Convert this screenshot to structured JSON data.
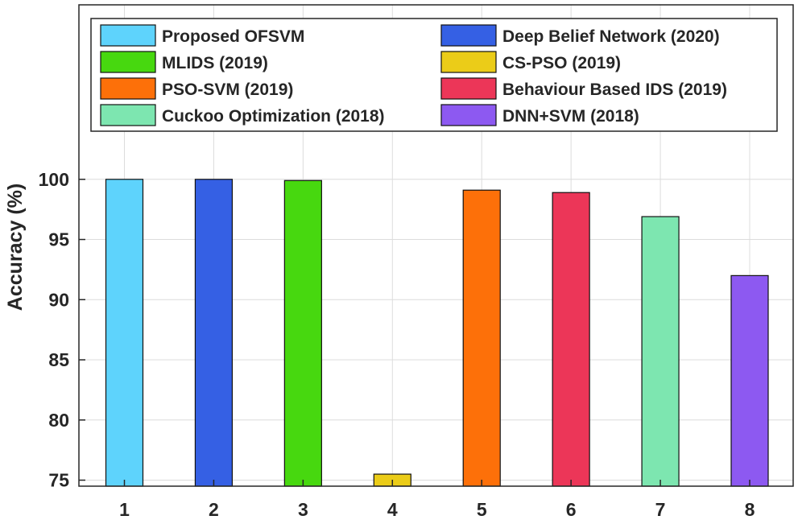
{
  "chart_data": {
    "type": "bar",
    "title": "",
    "xlabel": "",
    "ylabel": "Accuracy (%)",
    "ylim": [
      74.5,
      114.5
    ],
    "yticks": [
      75,
      80,
      85,
      90,
      95,
      100
    ],
    "grid": true,
    "legend_position": "top",
    "categories": [
      "1",
      "2",
      "3",
      "4",
      "5",
      "6",
      "7",
      "8"
    ],
    "series": [
      {
        "name": "Proposed OFSVM",
        "category": "1",
        "value": 100.0,
        "color": "#5ed3fc"
      },
      {
        "name": "Deep Belief Network (2020)",
        "category": "2",
        "value": 100.0,
        "color": "#3560e4"
      },
      {
        "name": "MLIDS (2019)",
        "category": "3",
        "value": 99.9,
        "color": "#47d80f"
      },
      {
        "name": "CS-PSO (2019)",
        "category": "4",
        "value": 75.5,
        "color": "#ebcc18"
      },
      {
        "name": "PSO-SVM (2019)",
        "category": "5",
        "value": 99.1,
        "color": "#fd7009"
      },
      {
        "name": "Behaviour Based IDS (2019)",
        "category": "6",
        "value": 98.9,
        "color": "#ec3658"
      },
      {
        "name": "Cuckoo Optimization (2018)",
        "category": "7",
        "value": 96.9,
        "color": "#7de6b0"
      },
      {
        "name": "DNN+SVM (2018)",
        "category": "8",
        "value": 92.0,
        "color": "#8d59f1"
      }
    ],
    "legend_order": [
      "Proposed OFSVM",
      "Deep Belief Network (2020)",
      "MLIDS (2019)",
      "CS-PSO (2019)",
      "PSO-SVM (2019)",
      "Behaviour Based IDS (2019)",
      "Cuckoo Optimization (2018)",
      "DNN+SVM (2018)"
    ]
  }
}
